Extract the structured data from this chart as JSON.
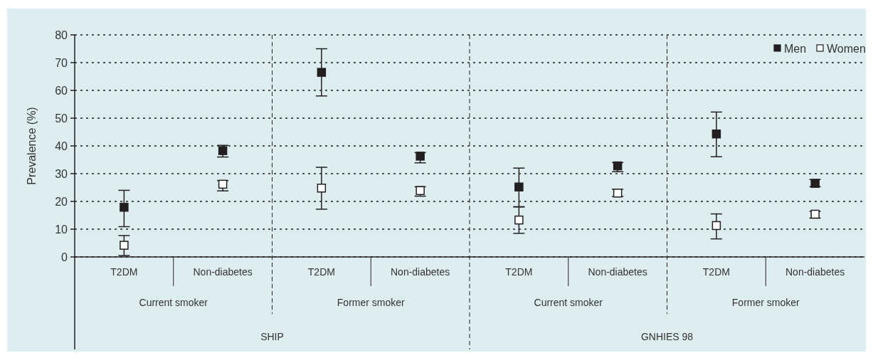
{
  "chart_data": {
    "type": "scatter",
    "ylabel": "Prevalence (%)",
    "categories": [
      "T2DM",
      "Non-diabetes",
      "T2DM",
      "Non-diabetes",
      "T2DM",
      "Non-diabetes",
      "T2DM",
      "Non-diabetes"
    ],
    "annotations": [
      "Current smoker",
      "Former smoker",
      "Current smoker",
      "Former smoker",
      "SHIP",
      "GNHIES 98"
    ],
    "series": [
      {
        "name": "Men",
        "color": "#231f20",
        "values": [
          17.9,
          38.3,
          66.5,
          36.3,
          25.2,
          32.8,
          44.3,
          26.5
        ],
        "errors": [
          [
            10.9,
            24
          ],
          [
            36,
            40.2
          ],
          [
            58,
            75
          ],
          [
            33.9,
            37.6
          ],
          [
            18.1,
            32
          ],
          [
            30.7,
            34
          ],
          [
            36.1,
            52.2
          ],
          [
            25.3,
            27.9
          ]
        ]
      },
      {
        "name": "Women",
        "color": "#ffffff",
        "values": [
          4.2,
          26.2,
          24.8,
          23.9,
          13.3,
          23,
          11.3,
          15.4
        ],
        "errors": [
          [
            0.5,
            7.7
          ],
          [
            23.8,
            27.5
          ],
          [
            17.2,
            32.3
          ],
          [
            21.9,
            25.3
          ],
          [
            8.5,
            18
          ],
          [
            21.8,
            24.4
          ],
          [
            6.5,
            15.5
          ],
          [
            14,
            16.4
          ]
        ]
      }
    ],
    "ylim": [
      0,
      80
    ],
    "yticks": [
      0,
      10,
      20,
      30,
      40,
      50,
      60,
      70,
      80
    ],
    "grid": "y",
    "legend": "top right",
    "marker": "square"
  }
}
